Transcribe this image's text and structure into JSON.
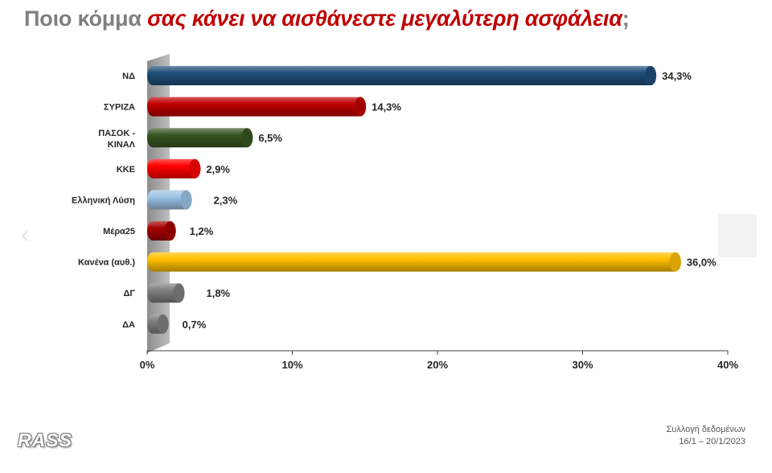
{
  "title": {
    "part1": "Ποιο κόμμα ",
    "part2": "σας κάνει να αισθάνεστε μεγαλύτερη ασφάλεια",
    "part3": ";"
  },
  "chart_data": {
    "type": "bar",
    "orientation": "horizontal",
    "categories": [
      "ΝΔ",
      "ΣΥΡΙΖΑ",
      "ΠΑΣΟΚ - ΚΙΝΑΛ",
      "ΚΚΕ",
      "Ελληνική Λύση",
      "Μέρα25",
      "Κανένα (αυθ.)",
      "ΔΓ",
      "ΔΑ"
    ],
    "values": [
      34.3,
      14.3,
      6.5,
      2.9,
      2.3,
      1.2,
      36.0,
      1.8,
      0.7
    ],
    "value_labels": [
      "34,3%",
      "14,3%",
      "6,5%",
      "2,9%",
      "2,3%",
      "1,2%",
      "36,0%",
      "1,8%",
      "0,7%"
    ],
    "colors": [
      "#1f4e79",
      "#c00000",
      "#375623",
      "#ff0000",
      "#9dc3e6",
      "#a50000",
      "#ffc000",
      "#808080",
      "#808080"
    ],
    "xlim": [
      0,
      40
    ],
    "xticks": [
      0,
      10,
      20,
      30,
      40
    ],
    "xtick_labels": [
      "0%",
      "10%",
      "20%",
      "30%",
      "40%"
    ],
    "grid": false
  },
  "branding": {
    "logo": "RASS"
  },
  "footer": {
    "line1": "Συλλογή δεδομένων",
    "line2": "16/1 – 20/1/2023"
  }
}
